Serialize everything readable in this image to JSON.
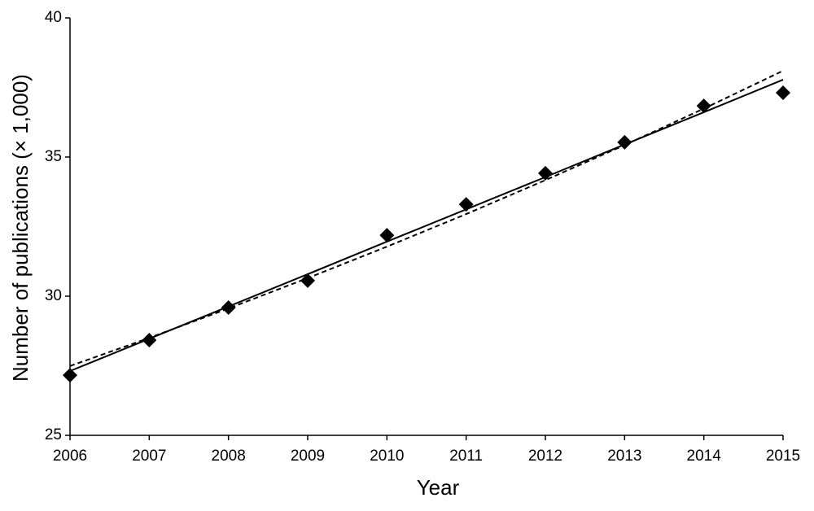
{
  "chart_data": {
    "type": "scatter",
    "x_label": "Year",
    "y_label": "Number of publications (× 1,000)",
    "x": [
      2006,
      2007,
      2008,
      2009,
      2010,
      2011,
      2012,
      2013,
      2014,
      2015
    ],
    "series": [
      {
        "mode": "markers",
        "marker": "diamond",
        "color": "#000000",
        "values": [
          27.16,
          28.42,
          29.59,
          30.56,
          32.19,
          33.3,
          34.42,
          35.53,
          36.84,
          37.31
        ]
      },
      {
        "mode": "line",
        "dash": false,
        "color": "#000000",
        "values": [
          27.31,
          28.47,
          29.63,
          30.79,
          31.96,
          33.12,
          34.28,
          35.45,
          36.61,
          37.78
        ]
      },
      {
        "mode": "line",
        "dash": true,
        "color": "#000000",
        "values": [
          27.49,
          28.5,
          29.56,
          30.65,
          31.78,
          32.95,
          34.17,
          35.43,
          36.74,
          38.1
        ]
      }
    ],
    "xlim": [
      2006,
      2015
    ],
    "xticks": [
      2006,
      2007,
      2008,
      2009,
      2010,
      2011,
      2012,
      2013,
      2014,
      2015
    ],
    "ylim": [
      25,
      40
    ],
    "yticks": [
      25,
      30,
      35,
      40
    ],
    "grid": false
  }
}
